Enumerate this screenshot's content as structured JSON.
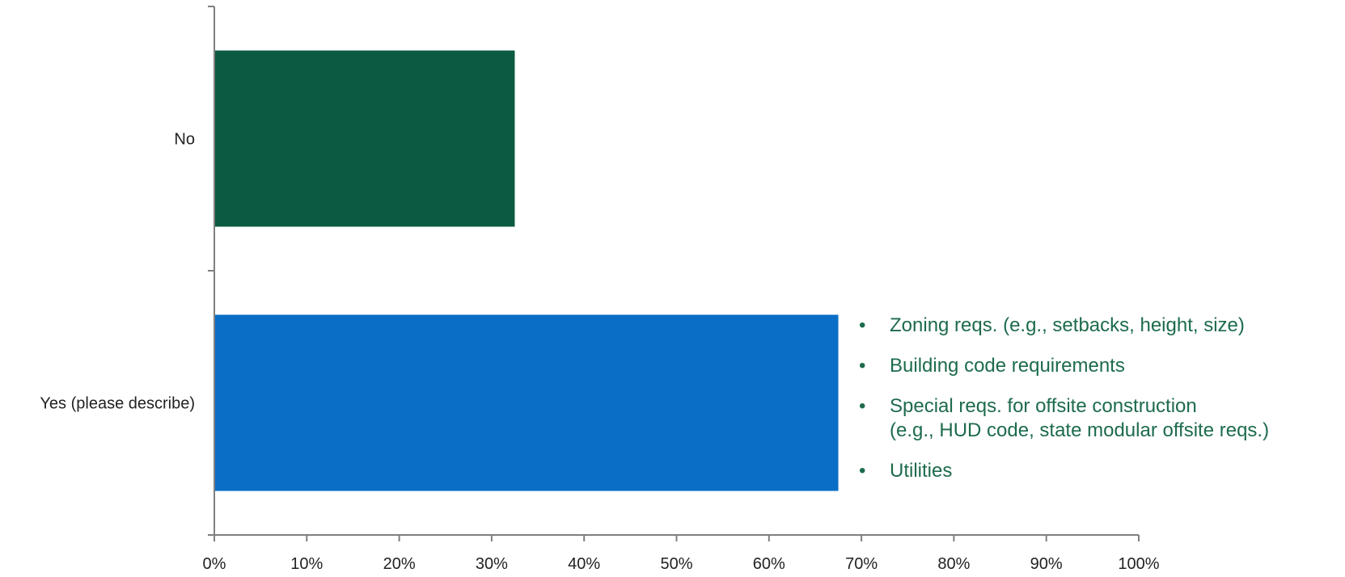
{
  "chart_data": {
    "type": "bar",
    "orientation": "horizontal",
    "categories": [
      "No",
      "Yes (please describe)"
    ],
    "values": [
      32.5,
      67.5
    ],
    "xlim": [
      0,
      100
    ],
    "xticks": [
      "0%",
      "10%",
      "20%",
      "30%",
      "40%",
      "50%",
      "60%",
      "70%",
      "80%",
      "90%",
      "100%"
    ],
    "bar_colors": [
      "#0d5a43",
      "#0a6ec6"
    ],
    "axis_color": "#7f7f7f",
    "grid": false,
    "title": "",
    "xlabel": "",
    "ylabel": ""
  },
  "annotation": {
    "color": "#1d6b4c",
    "bullet": "•",
    "items": [
      {
        "lines": [
          "Zoning reqs. (e.g., setbacks, height, size)"
        ]
      },
      {
        "lines": [
          "Building code requirements"
        ]
      },
      {
        "lines": [
          "Special reqs. for offsite construction",
          "(e.g., HUD code, state modular offsite reqs.)"
        ]
      },
      {
        "lines": [
          "Utilities"
        ]
      }
    ]
  }
}
